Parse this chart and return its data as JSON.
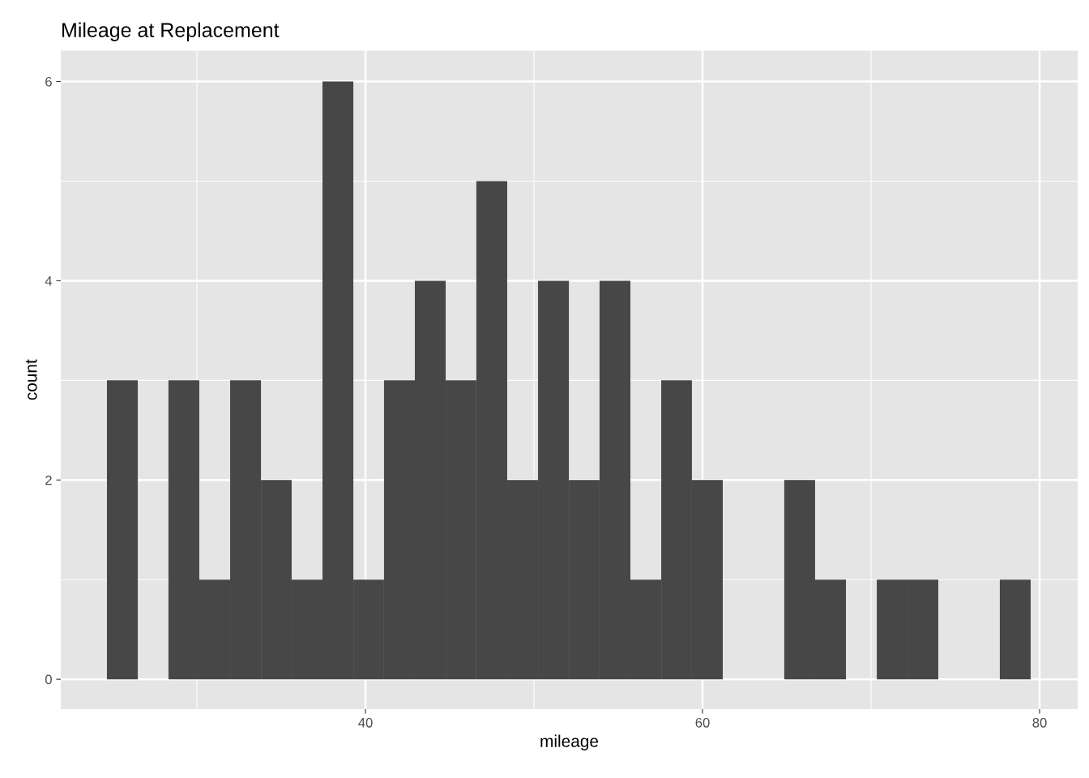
{
  "chart_data": {
    "type": "histogram",
    "title": "Mileage at Replacement",
    "xlabel": "mileage",
    "ylabel": "count",
    "bins": [
      24.66,
      26.49,
      28.31,
      30.14,
      31.97,
      33.8,
      35.62,
      37.45,
      39.28,
      41.1,
      42.93,
      44.76,
      46.58,
      48.41,
      50.24,
      52.07,
      53.89,
      55.72,
      57.55,
      59.37,
      61.2,
      63.03,
      64.85,
      66.68,
      68.51,
      70.34,
      72.16,
      73.99,
      75.82,
      77.64,
      79.47
    ],
    "values": [
      3,
      0,
      3,
      1,
      3,
      2,
      1,
      6,
      1,
      3,
      4,
      3,
      5,
      2,
      4,
      2,
      4,
      1,
      3,
      2,
      0,
      0,
      2,
      1,
      0,
      1,
      1,
      0,
      0,
      1
    ],
    "color": "#474747",
    "xlim": [
      21.92,
      82.26
    ],
    "xticks": [
      40,
      60,
      80
    ],
    "ylim": [
      -0.3,
      6.31
    ],
    "yticks": [
      0,
      2,
      4,
      6
    ],
    "grid": true
  }
}
